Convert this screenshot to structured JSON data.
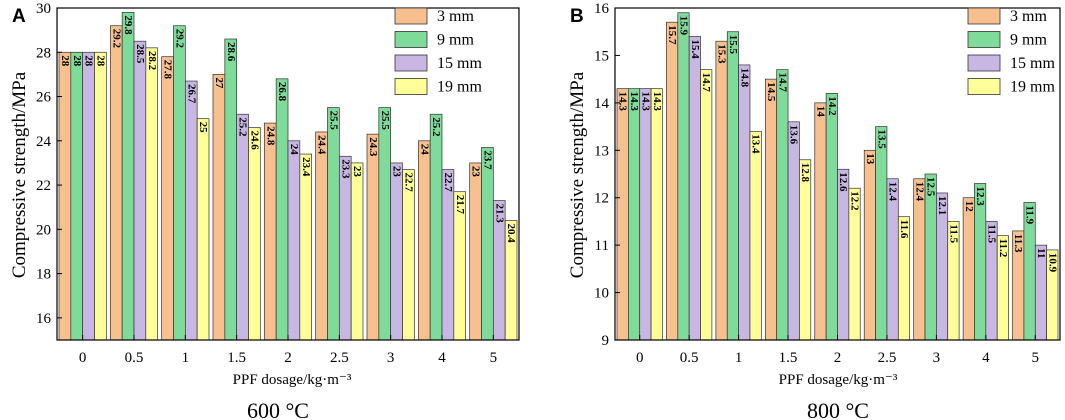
{
  "chart_data": [
    {
      "type": "bar",
      "panel_label": "A",
      "caption": "600 °C",
      "xlabel": "PPF dosage/kg·m⁻³",
      "ylabel": "Compressive strength/MPa",
      "categories": [
        "0",
        "0.5",
        "1",
        "1.5",
        "2",
        "2.5",
        "3",
        "4",
        "5"
      ],
      "ylim": [
        15,
        30
      ],
      "yticks": [
        "16",
        "18",
        "20",
        "22",
        "24",
        "26",
        "28",
        "30"
      ],
      "legend_position": "top-right",
      "series": [
        {
          "name": "3 mm",
          "color": "#f8c08f",
          "values": [
            28,
            29.2,
            27.8,
            27,
            24.8,
            24.4,
            24.3,
            24,
            23
          ],
          "labels": [
            "28",
            "29.2",
            "27.8",
            "27",
            "24.8",
            "24.4",
            "24.3",
            "24",
            "23"
          ]
        },
        {
          "name": "9 mm",
          "color": "#7fdb9a",
          "values": [
            28,
            29.8,
            29.2,
            28.6,
            26.8,
            25.5,
            25.5,
            25.2,
            23.7
          ],
          "labels": [
            "28",
            "29.8",
            "29.2",
            "28.6",
            "26.8",
            "25.5",
            "25.5",
            "25.2",
            "23.7"
          ]
        },
        {
          "name": "15 mm",
          "color": "#c9b7e3",
          "values": [
            28,
            28.5,
            26.7,
            25.2,
            24,
            23.3,
            23,
            22.7,
            21.3
          ],
          "labels": [
            "28",
            "28.5",
            "26.7",
            "25.2",
            "24",
            "23.3",
            "23",
            "22.7",
            "21.3"
          ]
        },
        {
          "name": "19 mm",
          "color": "#ffff99",
          "values": [
            28,
            28.2,
            25,
            24.6,
            23.4,
            23,
            22.7,
            21.7,
            20.4
          ],
          "labels": [
            "28",
            "28.2",
            "25",
            "24.6",
            "23.4",
            "23",
            "22.7",
            "21.7",
            "20.4"
          ]
        }
      ]
    },
    {
      "type": "bar",
      "panel_label": "B",
      "caption": "800 °C",
      "xlabel": "PPF dosage/kg·m⁻³",
      "ylabel": "Compressive strength/MPa",
      "categories": [
        "0",
        "0.5",
        "1",
        "1.5",
        "2",
        "2.5",
        "3",
        "4",
        "5"
      ],
      "ylim": [
        9,
        16
      ],
      "yticks": [
        "9",
        "10",
        "11",
        "12",
        "13",
        "14",
        "15",
        "16"
      ],
      "legend_position": "top-right",
      "series": [
        {
          "name": "3 mm",
          "color": "#f8c08f",
          "values": [
            14.3,
            15.7,
            15.3,
            14.5,
            14,
            13,
            12.4,
            12,
            11.3
          ],
          "labels": [
            "14.3",
            "15.7",
            "15.3",
            "14.5",
            "14",
            "13",
            "12.4",
            "12",
            "11.3"
          ]
        },
        {
          "name": "9 mm",
          "color": "#7fdb9a",
          "values": [
            14.3,
            15.9,
            15.5,
            14.7,
            14.2,
            13.5,
            12.5,
            12.3,
            11.9
          ],
          "labels": [
            "14.3",
            "15.9",
            "15.5",
            "14.7",
            "14.2",
            "13.5",
            "12.5",
            "12.3",
            "11.9"
          ]
        },
        {
          "name": "15 mm",
          "color": "#c9b7e3",
          "values": [
            14.3,
            15.4,
            14.8,
            13.6,
            12.6,
            12.4,
            12.1,
            11.5,
            11
          ],
          "labels": [
            "14.3",
            "15.4",
            "14.8",
            "13.6",
            "12.6",
            "12.4",
            "12.1",
            "11.5",
            "11"
          ]
        },
        {
          "name": "19 mm",
          "color": "#ffff99",
          "values": [
            14.3,
            14.7,
            13.4,
            12.8,
            12.2,
            11.6,
            11.5,
            11.2,
            10.9
          ],
          "labels": [
            "14.3",
            "14.7",
            "13.4",
            "12.8",
            "12.2",
            "11.6",
            "11.5",
            "11.2",
            "10.9"
          ]
        }
      ]
    }
  ]
}
